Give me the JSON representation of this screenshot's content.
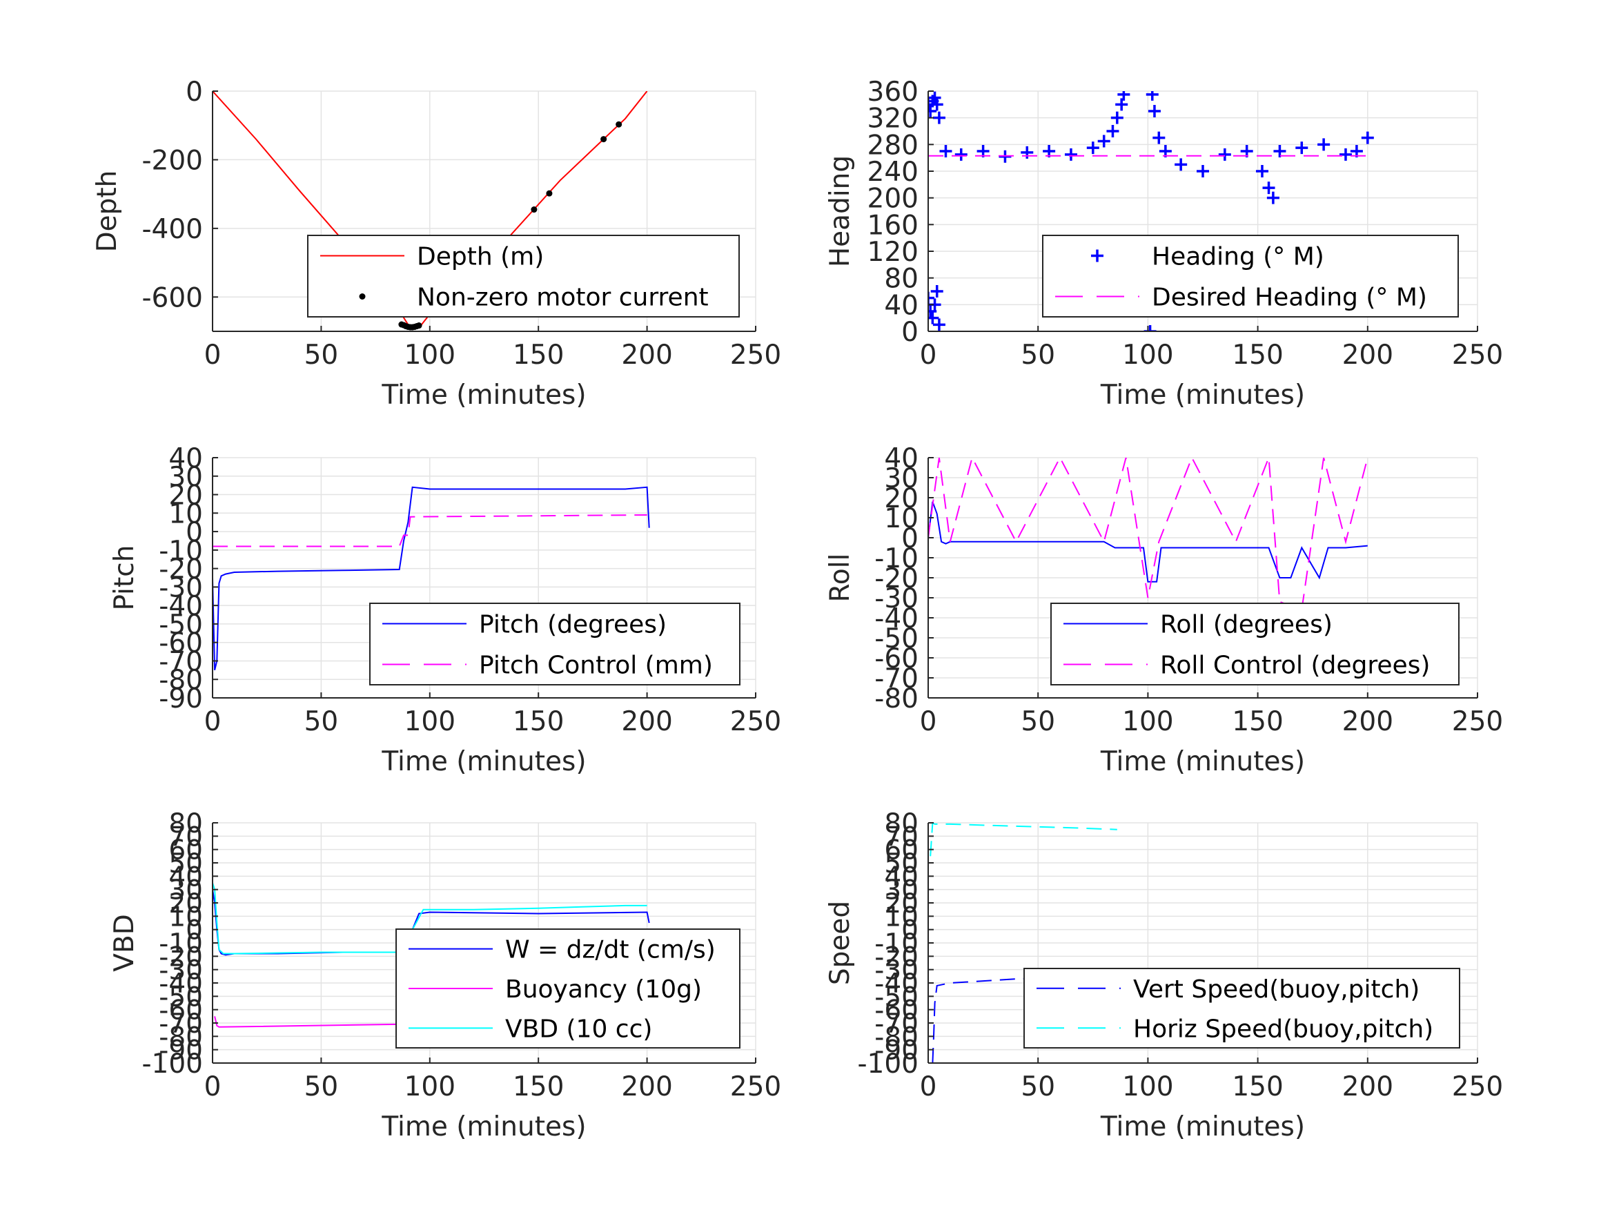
{
  "figure": {
    "charts": [
      {
        "id": "depth",
        "ylabel": "Depth",
        "xlabel": "Time (minutes)",
        "xlim": [
          0,
          250
        ],
        "xticks": [
          "0",
          "50",
          "100",
          "150",
          "200",
          "250"
        ],
        "ylim": [
          -700,
          0
        ],
        "yticks": [
          "0",
          "-200",
          "-400",
          "-600"
        ],
        "yticks_values": [
          0,
          -200,
          -400,
          -600
        ],
        "legend": [
          "Depth (m)",
          "Non-zero motor current"
        ]
      },
      {
        "id": "heading",
        "ylabel": "Heading",
        "xlabel": "Time (minutes)",
        "xlim": [
          0,
          250
        ],
        "xticks": [
          "0",
          "50",
          "100",
          "150",
          "200",
          "250"
        ],
        "ylim": [
          0,
          360
        ],
        "yticks": [
          "0",
          "40",
          "80",
          "120",
          "160",
          "200",
          "240",
          "280",
          "320",
          "360"
        ],
        "yticks_values": [
          0,
          40,
          80,
          120,
          160,
          200,
          240,
          280,
          320,
          360
        ],
        "legend": [
          "Heading (° M)",
          "Desired Heading (° M)"
        ]
      },
      {
        "id": "pitch",
        "ylabel": "Pitch",
        "xlabel": "Time (minutes)",
        "xlim": [
          0,
          250
        ],
        "xticks": [
          "0",
          "50",
          "100",
          "150",
          "200",
          "250"
        ],
        "ylim": [
          -90,
          40
        ],
        "yticks": [
          "40",
          "30",
          "20",
          "10",
          "0",
          "-10",
          "-20",
          "-30",
          "-40",
          "-50",
          "-60",
          "-70",
          "-80",
          "-90"
        ],
        "yticks_values": [
          40,
          30,
          20,
          10,
          0,
          -10,
          -20,
          -30,
          -40,
          -50,
          -60,
          -70,
          -80,
          -90
        ],
        "legend": [
          "Pitch (degrees)",
          "Pitch Control (mm)"
        ]
      },
      {
        "id": "roll",
        "ylabel": "Roll",
        "xlabel": "Time (minutes)",
        "xlim": [
          0,
          250
        ],
        "xticks": [
          "0",
          "50",
          "100",
          "150",
          "200",
          "250"
        ],
        "ylim": [
          -80,
          40
        ],
        "yticks": [
          "40",
          "30",
          "20",
          "10",
          "0",
          "-10",
          "-20",
          "-30",
          "-40",
          "-50",
          "-60",
          "-70",
          "-80"
        ],
        "yticks_values": [
          40,
          30,
          20,
          10,
          0,
          -10,
          -20,
          -30,
          -40,
          -50,
          -60,
          -70,
          -80
        ],
        "legend": [
          "Roll (degrees)",
          "Roll Control (degrees)"
        ]
      },
      {
        "id": "vbd",
        "ylabel": "VBD",
        "xlabel": "Time (minutes)",
        "xlim": [
          0,
          250
        ],
        "xticks": [
          "0",
          "50",
          "100",
          "150",
          "200",
          "250"
        ],
        "ylim": [
          -100,
          80
        ],
        "yticks": [
          "80",
          "70",
          "60",
          "50",
          "40",
          "30",
          "20",
          "10",
          "0",
          "-10",
          "-20",
          "-30",
          "-40",
          "-50",
          "-60",
          "-70",
          "-80",
          "-90",
          "-100"
        ],
        "yticks_values": [
          80,
          70,
          60,
          50,
          40,
          30,
          20,
          10,
          0,
          -10,
          -20,
          -30,
          -40,
          -50,
          -60,
          -70,
          -80,
          -90,
          -100
        ],
        "legend": [
          "W = dz/dt (cm/s)",
          "Buoyancy (10g)",
          "VBD (10 cc)"
        ]
      },
      {
        "id": "speed",
        "ylabel": "Speed",
        "xlabel": "Time (minutes)",
        "xlim": [
          0,
          250
        ],
        "xticks": [
          "0",
          "50",
          "100",
          "150",
          "200",
          "250"
        ],
        "ylim": [
          -100,
          80
        ],
        "yticks": [
          "80",
          "70",
          "60",
          "50",
          "40",
          "30",
          "20",
          "10",
          "0",
          "-10",
          "-20",
          "-30",
          "-40",
          "-50",
          "-60",
          "-70",
          "-80",
          "-90",
          "-100"
        ],
        "yticks_values": [
          80,
          70,
          60,
          50,
          40,
          30,
          20,
          10,
          0,
          -10,
          -20,
          -30,
          -40,
          -50,
          -60,
          -70,
          -80,
          -90,
          -100
        ],
        "legend": [
          "Vert Speed(buoy,pitch)",
          "Horiz Speed(buoy,pitch)"
        ]
      }
    ]
  },
  "chart_data": [
    {
      "type": "line",
      "xlim": [
        0,
        250
      ],
      "ylim": [
        -700,
        0
      ],
      "grid": true,
      "legend_placement": "bottom-right",
      "series": [
        {
          "name": "Depth (m)",
          "color": "#ff0000",
          "style": "solid",
          "x": [
            0,
            20,
            40,
            60,
            80,
            90,
            95,
            100,
            120,
            140,
            160,
            180,
            190,
            200
          ],
          "y": [
            0,
            -140,
            -290,
            -435,
            -580,
            -680,
            -690,
            -650,
            -540,
            -400,
            -260,
            -140,
            -80,
            0
          ]
        },
        {
          "name": "Non-zero motor current",
          "color": "#000000",
          "style": "dots",
          "x": [
            87,
            88,
            89,
            90,
            91,
            92,
            93,
            94,
            95,
            99,
            113,
            148,
            155,
            180,
            187
          ],
          "y": [
            -680,
            -682,
            -685,
            -687,
            -688,
            -688,
            -687,
            -685,
            -683,
            -650,
            -578,
            -345,
            -298,
            -140,
            -97
          ]
        }
      ]
    },
    {
      "type": "scatter",
      "xlim": [
        0,
        250
      ],
      "ylim": [
        0,
        360
      ],
      "grid": true,
      "legend_placement": "bottom-right",
      "series": [
        {
          "name": "Heading (° M)",
          "color": "#0000ff",
          "style": "plus",
          "x": [
            0,
            1,
            2,
            3,
            4,
            5,
            0,
            1,
            2,
            3,
            4,
            5,
            8,
            15,
            25,
            35,
            45,
            55,
            65,
            75,
            80,
            84,
            86,
            88,
            89,
            90,
            91,
            95,
            98,
            100,
            101,
            102,
            103,
            105,
            108,
            115,
            125,
            135,
            145,
            152,
            155,
            157,
            160,
            170,
            180,
            190,
            195,
            200
          ],
          "y": [
            340,
            330,
            345,
            350,
            340,
            320,
            50,
            30,
            20,
            40,
            60,
            10,
            270,
            265,
            270,
            262,
            268,
            270,
            265,
            275,
            285,
            300,
            320,
            340,
            355,
            50,
            90,
            100,
            80,
            30,
            0,
            355,
            330,
            290,
            270,
            250,
            240,
            265,
            270,
            240,
            215,
            200,
            270,
            275,
            280,
            265,
            270,
            290
          ]
        },
        {
          "name": "Desired Heading (° M)",
          "color": "#ff00ff",
          "style": "dashed",
          "x": [
            0,
            100,
            105,
            200
          ],
          "y": [
            263,
            263,
            263,
            263
          ]
        }
      ]
    },
    {
      "type": "line",
      "xlim": [
        0,
        250
      ],
      "ylim": [
        -90,
        40
      ],
      "grid": true,
      "legend_placement": "bottom-right",
      "series": [
        {
          "name": "Pitch (degrees)",
          "color": "#0000ff",
          "style": "solid",
          "x": [
            0,
            1,
            2,
            3,
            4,
            6,
            10,
            30,
            60,
            86,
            88,
            90,
            92,
            100,
            150,
            190,
            200,
            201
          ],
          "y": [
            -25,
            -75,
            -70,
            -28,
            -24,
            -23,
            -22,
            -21.5,
            -21,
            -20.5,
            -5,
            5,
            24,
            23,
            23,
            23,
            24,
            2
          ]
        },
        {
          "name": "Pitch Control (mm)",
          "color": "#ff00ff",
          "style": "dashed",
          "x": [
            0,
            86,
            88,
            90,
            91,
            200
          ],
          "y": [
            -8,
            -8,
            -2,
            -2,
            8,
            9
          ]
        }
      ]
    },
    {
      "type": "line",
      "xlim": [
        0,
        250
      ],
      "ylim": [
        -80,
        40
      ],
      "grid": true,
      "legend_placement": "bottom-right",
      "series": [
        {
          "name": "Roll (degrees)",
          "color": "#0000ff",
          "style": "solid",
          "x": [
            0,
            2,
            4,
            6,
            8,
            10,
            20,
            40,
            60,
            80,
            85,
            90,
            98,
            100,
            104,
            106,
            120,
            140,
            155,
            160,
            165,
            170,
            178,
            182,
            190,
            200
          ],
          "y": [
            0,
            18,
            12,
            -2,
            -3,
            -2,
            -2,
            -2,
            -2,
            -2,
            -5,
            -5,
            -5,
            -22,
            -22,
            -5,
            -5,
            -5,
            -5,
            -20,
            -20,
            -5,
            -20,
            -5,
            -5,
            -4
          ]
        },
        {
          "name": "Roll Control (degrees)",
          "color": "#ff00ff",
          "style": "dashed",
          "x": [
            0,
            5,
            10,
            20,
            40,
            60,
            80,
            90,
            100,
            105,
            120,
            140,
            155,
            160,
            170,
            180,
            190,
            200
          ],
          "y": [
            0,
            40,
            -2,
            40,
            -2,
            40,
            -2,
            40,
            -30,
            -2,
            40,
            -2,
            40,
            -32,
            -36,
            40,
            -2,
            40
          ]
        }
      ]
    },
    {
      "type": "line",
      "xlim": [
        0,
        250
      ],
      "ylim": [
        -100,
        80
      ],
      "grid": true,
      "legend_placement": "bottom-right",
      "series": [
        {
          "name": "W = dz/dt (cm/s)",
          "color": "#0000ff",
          "style": "solid",
          "x": [
            0,
            1,
            2,
            3,
            4,
            6,
            10,
            30,
            60,
            85,
            88,
            92,
            95,
            100,
            150,
            200,
            201
          ],
          "y": [
            30,
            20,
            0,
            -15,
            -18,
            -19,
            -18,
            -18,
            -17,
            -17,
            -10,
            0,
            12,
            13,
            12,
            13,
            5
          ]
        },
        {
          "name": "Buoyancy (10g)",
          "color": "#ff00ff",
          "style": "solid",
          "x": [
            1,
            2,
            3,
            85
          ],
          "y": [
            -65,
            -72,
            -73,
            -71
          ]
        },
        {
          "name": "VBD (10 cc)",
          "color": "#00ffff",
          "style": "solid",
          "x": [
            0,
            1,
            2,
            3,
            5,
            10,
            50,
            85,
            92,
            97,
            120,
            150,
            170,
            190,
            200
          ],
          "y": [
            35,
            30,
            5,
            -15,
            -18,
            -18,
            -17,
            -17,
            0,
            15,
            15,
            16,
            17,
            18,
            18
          ]
        }
      ]
    },
    {
      "type": "line",
      "xlim": [
        0,
        250
      ],
      "ylim": [
        -100,
        80
      ],
      "grid": true,
      "legend_placement": "bottom-right",
      "series": [
        {
          "name": "Vert Speed(buoy,pitch)",
          "color": "#0000ff",
          "style": "dashed",
          "x": [
            2,
            2.5,
            3,
            4,
            10,
            20,
            40,
            60,
            85
          ],
          "y": [
            -100,
            -80,
            -55,
            -42,
            -40,
            -39,
            -37,
            -36,
            -36
          ]
        },
        {
          "name": "Horiz Speed(buoy,pitch)",
          "color": "#00ffff",
          "style": "dashed",
          "x": [
            1,
            2,
            3,
            10,
            30,
            50,
            70,
            86
          ],
          "y": [
            55,
            80,
            79,
            79,
            78,
            77,
            76,
            75
          ]
        }
      ]
    }
  ]
}
